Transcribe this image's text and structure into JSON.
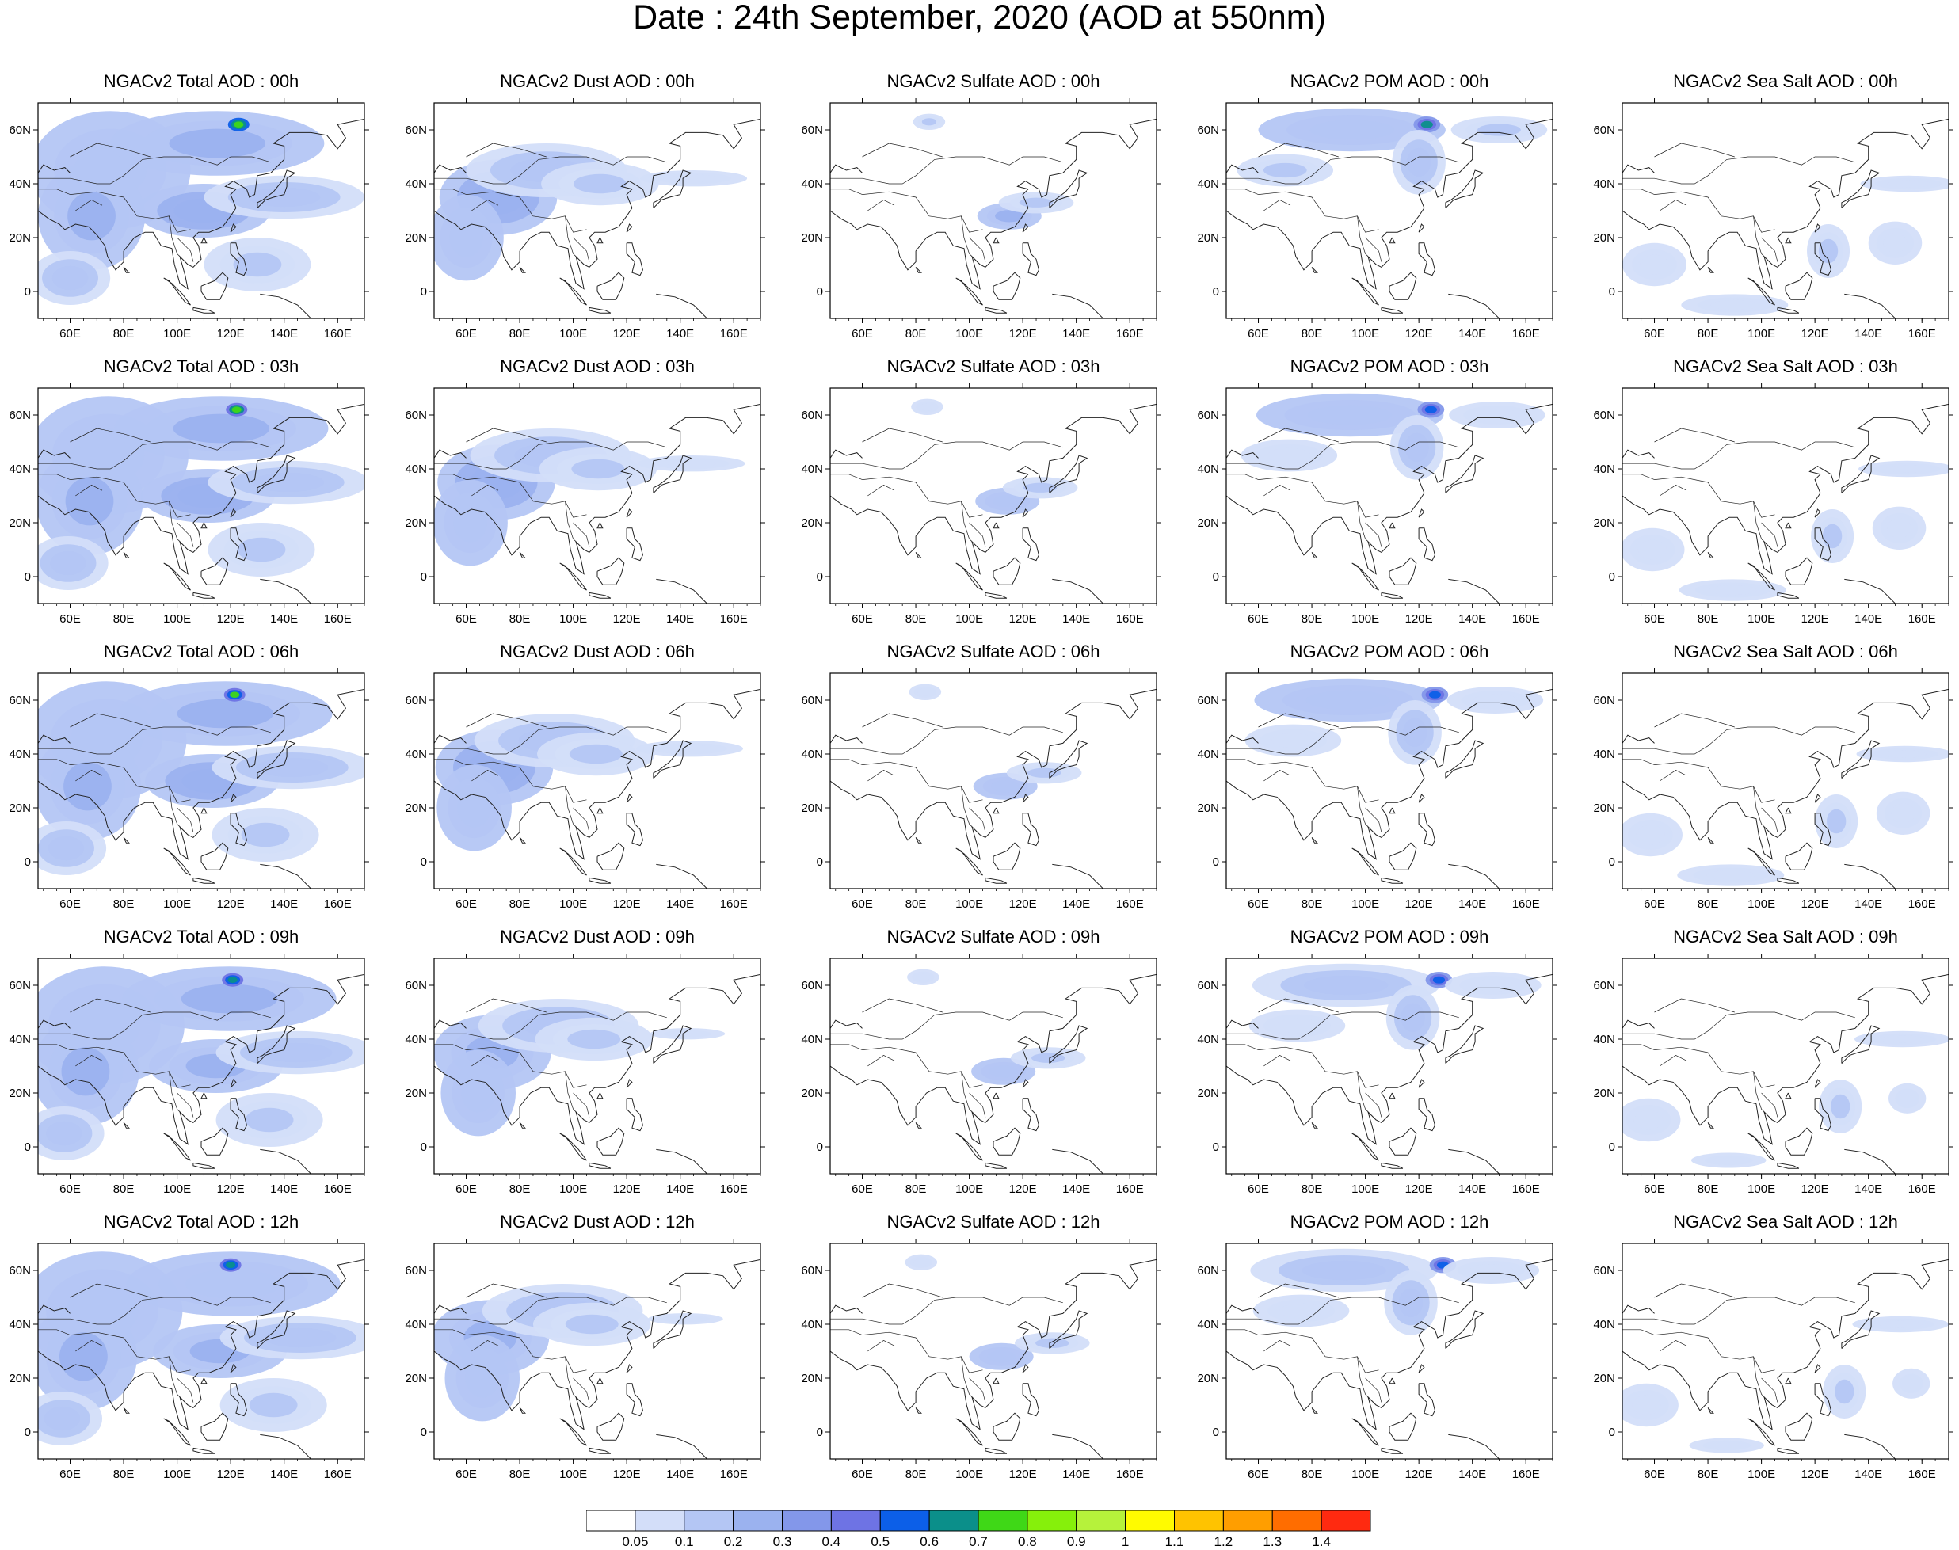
{
  "title": "Date : 24th  September, 2020 (AOD at 550nm)",
  "map": {
    "lon_range": [
      48,
      170
    ],
    "lat_range": [
      -10,
      70
    ],
    "lon_ticks": [
      {
        "value": 60,
        "label": "60E"
      },
      {
        "value": 80,
        "label": "80E"
      },
      {
        "value": 100,
        "label": "100E"
      },
      {
        "value": 120,
        "label": "120E"
      },
      {
        "value": 140,
        "label": "140E"
      },
      {
        "value": 160,
        "label": "160E"
      }
    ],
    "lat_ticks": [
      {
        "value": 0,
        "label": "0"
      },
      {
        "value": 20,
        "label": "20N"
      },
      {
        "value": 40,
        "label": "40N"
      },
      {
        "value": 60,
        "label": "60N"
      }
    ]
  },
  "species": [
    {
      "key": "total",
      "name": "Total"
    },
    {
      "key": "dust",
      "name": "Dust"
    },
    {
      "key": "sulfate",
      "name": "Sulfate"
    },
    {
      "key": "pom",
      "name": "POM"
    },
    {
      "key": "seasalt",
      "name": "Sea Salt"
    }
  ],
  "hours": [
    "00h",
    "03h",
    "06h",
    "09h",
    "12h"
  ],
  "panel_titles": [
    [
      "NGACv2 Total AOD : 00h",
      "NGACv2 Dust AOD : 00h",
      "NGACv2 Sulfate AOD : 00h",
      "NGACv2 POM AOD : 00h",
      "NGACv2 Sea Salt AOD : 00h"
    ],
    [
      "NGACv2 Total AOD : 03h",
      "NGACv2 Dust AOD : 03h",
      "NGACv2 Sulfate AOD : 03h",
      "NGACv2 POM AOD : 03h",
      "NGACv2 Sea Salt AOD : 03h"
    ],
    [
      "NGACv2 Total AOD : 06h",
      "NGACv2 Dust AOD : 06h",
      "NGACv2 Sulfate AOD : 06h",
      "NGACv2 POM AOD : 06h",
      "NGACv2 Sea Salt AOD : 06h"
    ],
    [
      "NGACv2 Total AOD : 09h",
      "NGACv2 Dust AOD : 09h",
      "NGACv2 Sulfate AOD : 09h",
      "NGACv2 POM AOD : 09h",
      "NGACv2 Sea Salt  AOD : 09h"
    ],
    [
      "NGACv2 Total AOD  : 12h",
      "NGACv2 Dust AOD : 12h",
      "NGACv2 Sulfate AOD : 12h",
      "NGACv2 POM  AOD : 12h",
      "NGACv2 Sea Salt  AOD : 12h"
    ]
  ],
  "colorbar": {
    "labels": [
      "0.05",
      "0.1",
      "0.2",
      "0.3",
      "0.4",
      "0.5",
      "0.6",
      "0.7",
      "0.8",
      "0.9",
      "1",
      "1.1",
      "1.2",
      "1.3",
      "1.4"
    ],
    "colors": [
      "#ffffff",
      "#d3def9",
      "#b4c6f4",
      "#9bb2ef",
      "#8397ea",
      "#6e73e4",
      "#0c5fe8",
      "#0b8f8a",
      "#3fd817",
      "#86f00b",
      "#b6f23b",
      "#fffb00",
      "#ffc300",
      "#ff9e00",
      "#ff6d00",
      "#ff2a10"
    ]
  },
  "colors": {
    "coast": "#222222",
    "ocean_bg": "#ffffff"
  },
  "patterns": {
    "total": [
      {
        "lon": 75,
        "lat": 45,
        "rx": 30,
        "ry": 22,
        "v": 0.18
      },
      {
        "lon": 115,
        "lat": 55,
        "rx": 40,
        "ry": 12,
        "v": 0.22
      },
      {
        "lon": 68,
        "lat": 28,
        "rx": 20,
        "ry": 20,
        "v": 0.24
      },
      {
        "lon": 110,
        "lat": 30,
        "rx": 25,
        "ry": 10,
        "v": 0.26
      },
      {
        "lon": 123,
        "lat": 62,
        "rx": 4,
        "ry": 2.5,
        "v": 0.75
      },
      {
        "lon": 140,
        "lat": 35,
        "rx": 30,
        "ry": 8,
        "v": 0.15
      },
      {
        "lon": 60,
        "lat": 5,
        "rx": 15,
        "ry": 10,
        "v": 0.14
      },
      {
        "lon": 130,
        "lat": 10,
        "rx": 20,
        "ry": 10,
        "v": 0.12
      }
    ],
    "dust": [
      {
        "lon": 72,
        "lat": 35,
        "rx": 22,
        "ry": 14,
        "v": 0.26
      },
      {
        "lon": 90,
        "lat": 45,
        "rx": 30,
        "ry": 10,
        "v": 0.14
      },
      {
        "lon": 110,
        "lat": 40,
        "rx": 22,
        "ry": 8,
        "v": 0.12
      },
      {
        "lon": 60,
        "lat": 20,
        "rx": 14,
        "ry": 16,
        "v": 0.18
      },
      {
        "lon": 145,
        "lat": 42,
        "rx": 20,
        "ry": 3,
        "v": 0.08
      }
    ],
    "sulfate": [
      {
        "lon": 115,
        "lat": 28,
        "rx": 12,
        "ry": 5,
        "v": 0.2
      },
      {
        "lon": 125,
        "lat": 33,
        "rx": 14,
        "ry": 4,
        "v": 0.12
      },
      {
        "lon": 85,
        "lat": 63,
        "rx": 6,
        "ry": 3,
        "v": 0.1
      }
    ],
    "pom": [
      {
        "lon": 95,
        "lat": 60,
        "rx": 35,
        "ry": 8,
        "v": 0.16
      },
      {
        "lon": 123,
        "lat": 62,
        "rx": 5,
        "ry": 3,
        "v": 0.6
      },
      {
        "lon": 120,
        "lat": 48,
        "rx": 10,
        "ry": 12,
        "v": 0.15
      },
      {
        "lon": 70,
        "lat": 45,
        "rx": 18,
        "ry": 6,
        "v": 0.1
      },
      {
        "lon": 150,
        "lat": 60,
        "rx": 18,
        "ry": 5,
        "v": 0.1
      }
    ],
    "seasalt": [
      {
        "lon": 60,
        "lat": 10,
        "rx": 12,
        "ry": 8,
        "v": 0.09
      },
      {
        "lon": 125,
        "lat": 15,
        "rx": 8,
        "ry": 10,
        "v": 0.12
      },
      {
        "lon": 155,
        "lat": 40,
        "rx": 18,
        "ry": 3,
        "v": 0.09
      },
      {
        "lon": 150,
        "lat": 18,
        "rx": 10,
        "ry": 8,
        "v": 0.08
      },
      {
        "lon": 90,
        "lat": -5,
        "rx": 20,
        "ry": 4,
        "v": 0.08
      }
    ]
  }
}
